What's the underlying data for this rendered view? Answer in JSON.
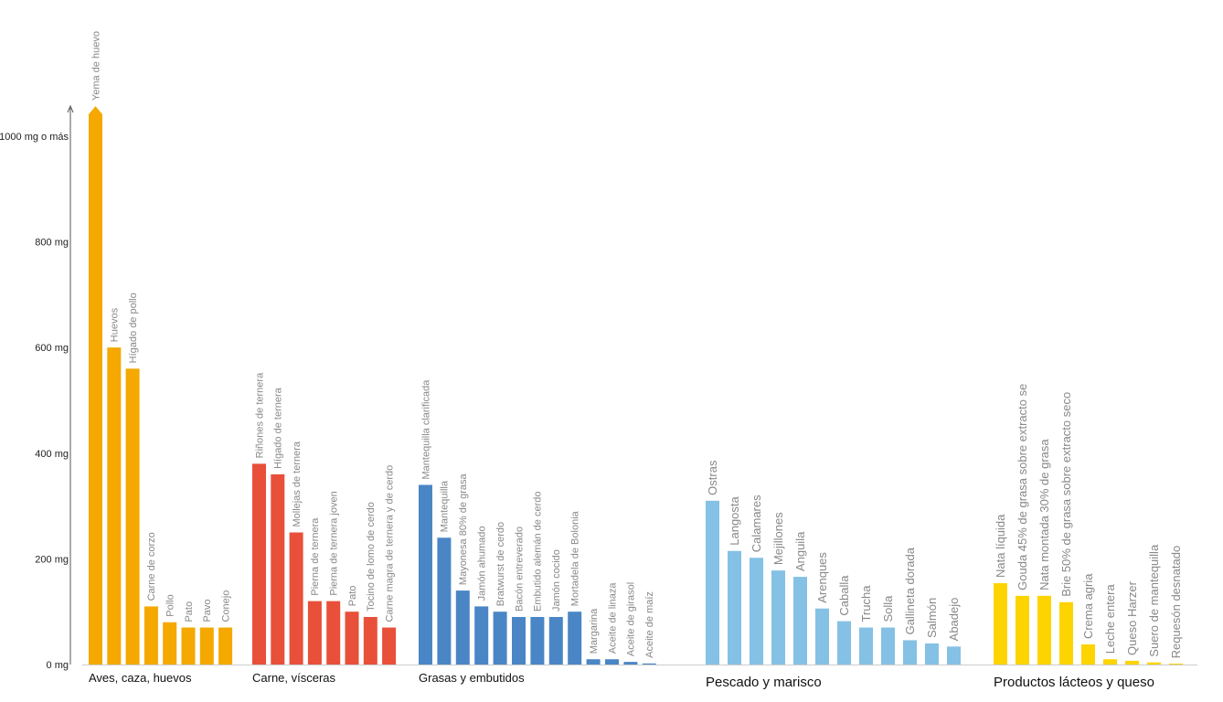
{
  "chart_data": {
    "type": "bar",
    "title": "",
    "xlabel": "",
    "ylabel": "",
    "ylim": [
      0,
      1000
    ],
    "y_ticks": [
      {
        "value": 0,
        "label": "0 mg"
      },
      {
        "value": 200,
        "label": "200 mg"
      },
      {
        "value": 400,
        "label": "400 mg"
      },
      {
        "value": 600,
        "label": "600 mg"
      },
      {
        "value": 800,
        "label": "800 mg"
      },
      {
        "value": 1000,
        "label": "1000 mg o más"
      }
    ],
    "groups": [
      {
        "name": "Aves, caza, huevos",
        "color": "#F5A800",
        "bars": [
          {
            "label": "Yema de huevo",
            "value": 1050,
            "overflow": true
          },
          {
            "label": "Huevos",
            "value": 600
          },
          {
            "label": "Hígado de pollo",
            "value": 560
          },
          {
            "label": "Carne de corzo",
            "value": 110
          },
          {
            "label": "Pollo",
            "value": 80
          },
          {
            "label": "Pato",
            "value": 70
          },
          {
            "label": "Pavo",
            "value": 70
          },
          {
            "label": "Conejo",
            "value": 70
          }
        ]
      },
      {
        "name": "Carne, vísceras",
        "color": "#E8503A",
        "bars": [
          {
            "label": "Riñones de ternera",
            "value": 380
          },
          {
            "label": "Hígado de ternera",
            "value": 360
          },
          {
            "label": "Mollejas de ternera",
            "value": 250
          },
          {
            "label": "Pierna de ternera",
            "value": 120
          },
          {
            "label": "Pierna de ternera joven",
            "value": 120
          },
          {
            "label": "Pato",
            "value": 100
          },
          {
            "label": "Tocino de lomo de cerdo",
            "value": 90
          },
          {
            "label": "Carne magra de ternera y de cerdo",
            "value": 70
          }
        ]
      },
      {
        "name": "Grasas y embutidos",
        "color": "#4A86C5",
        "bars": [
          {
            "label": "Mantequilla clarificada",
            "value": 340
          },
          {
            "label": "Mantequilla",
            "value": 240
          },
          {
            "label": "Mayonesa 80% de grasa",
            "value": 140
          },
          {
            "label": "Jamón ahumado",
            "value": 110
          },
          {
            "label": "Bratwurst de cerdo",
            "value": 100
          },
          {
            "label": "Bacón entreverado",
            "value": 90
          },
          {
            "label": "Embutido alemán de cerdo",
            "value": 90
          },
          {
            "label": "Jamón cocido",
            "value": 90
          },
          {
            "label": "Mortadela de Bolonia",
            "value": 100
          },
          {
            "label": "Margarina",
            "value": 10
          },
          {
            "label": "Aceite de linaza",
            "value": 10
          },
          {
            "label": "Aceite de girasol",
            "value": 5
          },
          {
            "label": "Aceite de maíz",
            "value": 2
          }
        ]
      },
      {
        "name": "Pescado y marisco",
        "color": "#85C1E5",
        "bars": [
          {
            "label": "Ostras",
            "value": 310
          },
          {
            "label": "Langosta",
            "value": 215
          },
          {
            "label": "Calamares",
            "value": 202
          },
          {
            "label": "Mejillones",
            "value": 178
          },
          {
            "label": "Anguila",
            "value": 166
          },
          {
            "label": "Arenques",
            "value": 106
          },
          {
            "label": "Caballa",
            "value": 82
          },
          {
            "label": "Trucha",
            "value": 70
          },
          {
            "label": "Solla",
            "value": 70
          },
          {
            "label": "Gallineta dorada",
            "value": 46
          },
          {
            "label": "Salmón",
            "value": 40
          },
          {
            "label": "Abadejo",
            "value": 34
          }
        ]
      },
      {
        "name": "Productos lácteos y queso",
        "color": "#FDD400",
        "bars": [
          {
            "label": "Nata líquida",
            "value": 154
          },
          {
            "label": "Gouda 45% de grasa sobre extracto se",
            "value": 130
          },
          {
            "label": "Nata montada 30% de grasa",
            "value": 130
          },
          {
            "label": "Brie 50% de grasa sobre extracto seco",
            "value": 118
          },
          {
            "label": "Crema agria",
            "value": 38
          },
          {
            "label": "Leche entera",
            "value": 10
          },
          {
            "label": "Queso Harzer",
            "value": 7
          },
          {
            "label": "Suero de mantequilla",
            "value": 4
          },
          {
            "label": "Requesón desnatado",
            "value": 1
          }
        ]
      }
    ]
  }
}
